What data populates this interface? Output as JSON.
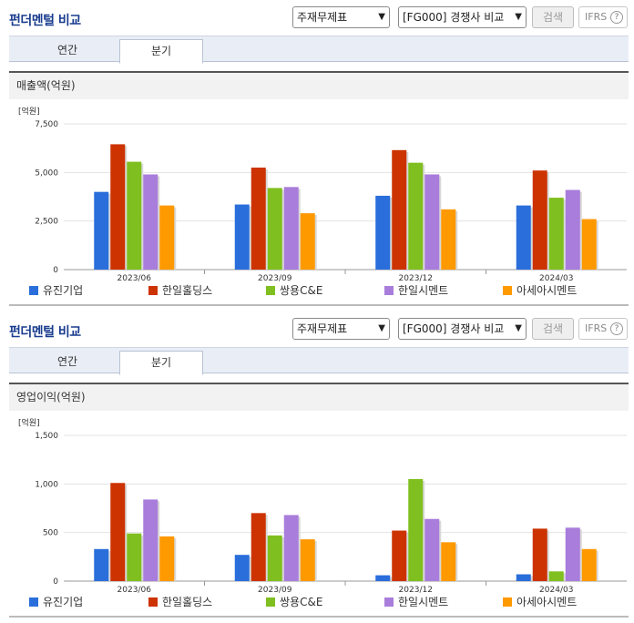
{
  "panels": [
    {
      "title": "펀더멘털 비교",
      "select1": "주재무제표",
      "select2": "[FG000] 경쟁사 비교",
      "search_label": "검색",
      "ifrs_label": "IFRS",
      "tabs": [
        "연간",
        "분기"
      ],
      "active_tab": 1,
      "section_label": "매출액(억원)",
      "unit_label": "[억원]"
    },
    {
      "title": "펀더멘털 비교",
      "select1": "주재무제표",
      "select2": "[FG000] 경쟁사 비교",
      "search_label": "검색",
      "ifrs_label": "IFRS",
      "tabs": [
        "연간",
        "분기"
      ],
      "active_tab": 1,
      "section_label": "영업이익(억원)",
      "unit_label": "[억원]"
    }
  ],
  "colors": {
    "유진기업": "#2a6edb",
    "한일홀딩스": "#cc3300",
    "쌍용C&E": "#7fbf1f",
    "한일시멘트": "#a97ddb",
    "아세아시멘트": "#ff9900"
  },
  "chart_data": [
    {
      "type": "bar",
      "title": "매출액(억원)",
      "ylabel": "[억원]",
      "categories": [
        "2023/06",
        "2023/09",
        "2023/12",
        "2024/03"
      ],
      "ylim": [
        0,
        7500
      ],
      "yticks": [
        "0",
        "2,500",
        "5,000",
        "7,500"
      ],
      "ytick_values": [
        0,
        2500,
        5000,
        7500
      ],
      "series": [
        {
          "name": "유진기업",
          "values": [
            4000,
            3350,
            3800,
            3300
          ]
        },
        {
          "name": "한일홀딩스",
          "values": [
            6450,
            5250,
            6150,
            5100
          ]
        },
        {
          "name": "쌍용C&E",
          "values": [
            5550,
            4200,
            5500,
            3700
          ]
        },
        {
          "name": "한일시멘트",
          "values": [
            4900,
            4250,
            4900,
            4100
          ]
        },
        {
          "name": "아세아시멘트",
          "values": [
            3300,
            2900,
            3100,
            2600
          ]
        }
      ],
      "grid": true,
      "legend": "bottom"
    },
    {
      "type": "bar",
      "title": "영업이익(억원)",
      "ylabel": "[억원]",
      "categories": [
        "2023/06",
        "2023/09",
        "2023/12",
        "2024/03"
      ],
      "ylim": [
        0,
        1500
      ],
      "yticks": [
        "0",
        "500",
        "1,000",
        "1,500"
      ],
      "ytick_values": [
        0,
        500,
        1000,
        1500
      ],
      "series": [
        {
          "name": "유진기업",
          "values": [
            330,
            270,
            60,
            70
          ]
        },
        {
          "name": "한일홀딩스",
          "values": [
            1010,
            700,
            520,
            540
          ]
        },
        {
          "name": "쌍용C&E",
          "values": [
            490,
            470,
            1050,
            100
          ]
        },
        {
          "name": "한일시멘트",
          "values": [
            840,
            680,
            640,
            550
          ]
        },
        {
          "name": "아세아시멘트",
          "values": [
            460,
            430,
            400,
            330
          ]
        }
      ],
      "grid": true,
      "legend": "bottom"
    }
  ]
}
